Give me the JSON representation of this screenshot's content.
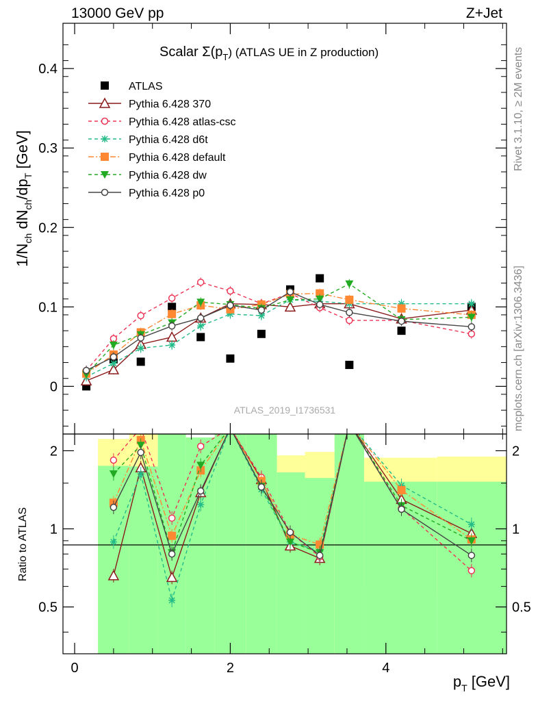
{
  "header": {
    "left": "13000 GeV pp",
    "right": "Z+Jet"
  },
  "side_labels": {
    "rivet": "Rivet 3.1.10, ≥ 2M events",
    "site": "mcplots.cern.ch [arXiv:1306.3436]"
  },
  "watermark": "ATLAS_2019_I1736531",
  "colors": {
    "data": "#000000",
    "band_inner": "#99ff99",
    "band_outer": "#ffff99"
  },
  "chart_data": [
    {
      "type": "scatter",
      "panel": "main",
      "title": "Scalar Σ(p_T) (ATLAS UE in Z production)",
      "title_main": "Scalar Σ(p",
      "title_sub": "T",
      "title_rest": ") (ATLAS UE in Z production)",
      "xlabel": "p_T [GeV]",
      "ylabel": "1/N_ch dN_ch/dp_T [GeV]",
      "xlim": [
        -0.15,
        5.55
      ],
      "ylim": [
        -0.06,
        0.457
      ],
      "y_ticks": [
        0,
        0.1,
        0.2,
        0.3,
        0.4
      ],
      "y_tick_labels": [
        "0",
        "0.1",
        "0.2",
        "0.3",
        "0.4"
      ],
      "x_ticks": [
        0,
        2,
        4
      ],
      "grid": false,
      "legend_position": "top-left",
      "x": [
        0.15,
        0.5,
        0.85,
        1.25,
        1.62,
        2.0,
        2.4,
        2.77,
        3.15,
        3.53,
        4.2,
        5.1
      ],
      "series": [
        {
          "name": "ATLAS",
          "color": "#000000",
          "marker": "square",
          "line": "none",
          "values": [
            0.0,
            0.034,
            0.031,
            0.1,
            0.062,
            0.035,
            0.066,
            0.122,
            0.136,
            0.027,
            0.07,
            0.1
          ]
        },
        {
          "name": "Pythia 6.428 370",
          "color": "#8b1a1a",
          "marker": "triangle-open",
          "line": "solid",
          "values": [
            0.007,
            0.021,
            0.053,
            0.062,
            0.086,
            0.104,
            0.103,
            0.1,
            0.104,
            0.104,
            0.085,
            0.096
          ]
        },
        {
          "name": "Pythia 6.428 atlas-csc",
          "color": "#ee3355",
          "marker": "circle-open",
          "line": "dashed",
          "values": [
            0.02,
            0.06,
            0.089,
            0.111,
            0.131,
            0.12,
            0.104,
            0.117,
            0.099,
            0.083,
            0.083,
            0.066
          ]
        },
        {
          "name": "Pythia 6.428 d6t",
          "color": "#22bb88",
          "marker": "asterisk",
          "line": "dashed",
          "values": [
            0.012,
            0.029,
            0.048,
            0.052,
            0.076,
            0.091,
            0.089,
            0.109,
            0.107,
            0.104,
            0.104,
            0.104
          ]
        },
        {
          "name": "Pythia 6.428 default",
          "color": "#ff8833",
          "marker": "square",
          "line": "dashdot",
          "values": [
            0.016,
            0.04,
            0.068,
            0.091,
            0.102,
            0.097,
            0.103,
            0.116,
            0.117,
            0.109,
            0.098,
            0.09
          ]
        },
        {
          "name": "Pythia 6.428 dw",
          "color": "#22aa22",
          "marker": "triangle-down",
          "line": "dashed",
          "values": [
            0.015,
            0.052,
            0.065,
            0.08,
            0.106,
            0.103,
            0.098,
            0.109,
            0.11,
            0.129,
            0.084,
            0.087
          ]
        },
        {
          "name": "Pythia 6.428 p0",
          "color": "#444444",
          "marker": "circle-open",
          "line": "solid",
          "values": [
            0.02,
            0.037,
            0.061,
            0.076,
            0.086,
            0.102,
            0.096,
            0.119,
            0.103,
            0.093,
            0.082,
            0.075
          ]
        }
      ]
    },
    {
      "type": "line",
      "panel": "ratio",
      "ylabel": "Ratio to ATLAS",
      "ylim": [
        0.33,
        2.32
      ],
      "y_ticks": [
        0.5,
        1,
        2
      ],
      "y_tick_labels": [
        "0.5",
        "1",
        "2"
      ],
      "x_tick_labels": [
        "0",
        "2",
        "4"
      ],
      "xlabel": "p_T [GeV]",
      "reference_line": 1,
      "band_edges": [
        0.3,
        0.7,
        1.07,
        1.43,
        1.8,
        2.2,
        2.6,
        2.96,
        3.34,
        3.72,
        4.66,
        5.55
      ],
      "band_inner": [
        [
          0.0,
          1.75
        ],
        [
          0.0,
          1.74
        ],
        [
          0.0,
          2.32
        ],
        [
          0.0,
          2.25
        ],
        [
          0.0,
          2.32
        ],
        [
          0.0,
          2.32
        ],
        [
          0.0,
          1.65
        ],
        [
          0.0,
          1.57
        ],
        [
          0.0,
          2.32
        ],
        [
          0.0,
          1.52
        ],
        [
          0.0,
          1.52
        ]
      ],
      "band_outer": [
        [
          0.0,
          2.22
        ],
        [
          0.0,
          2.32
        ],
        [
          0.66,
          1.46
        ],
        [
          0.45,
          1.86
        ],
        [
          0.0,
          2.32
        ],
        [
          0.0,
          2.32
        ],
        [
          0.67,
          1.92
        ],
        [
          0.5,
          1.98
        ],
        [
          0.0,
          2.32
        ],
        [
          0.59,
          1.88
        ],
        [
          0.56,
          1.9
        ]
      ],
      "x": [
        0.5,
        0.85,
        1.25,
        1.62,
        2.0,
        2.4,
        2.77,
        3.15,
        3.53,
        4.2,
        5.1
      ],
      "series": [
        {
          "name": "Pythia 6.428 370",
          "values": [
            0.66,
            1.72,
            0.65,
            1.38,
            2.45,
            1.55,
            0.86,
            0.77,
            2.55,
            1.3,
            0.96
          ]
        },
        {
          "name": "Pythia 6.428 atlas-csc",
          "values": [
            1.84,
            2.45,
            1.1,
            2.08,
            2.45,
            1.58,
            0.97,
            0.78,
            2.55,
            1.2,
            0.69
          ]
        },
        {
          "name": "Pythia 6.428 d6t",
          "values": [
            0.89,
            1.63,
            0.53,
            1.24,
            2.45,
            1.42,
            0.89,
            0.82,
            2.55,
            1.47,
            1.04
          ]
        },
        {
          "name": "Pythia 6.428 default",
          "values": [
            1.26,
            2.2,
            0.94,
            1.68,
            2.45,
            1.53,
            0.95,
            0.87,
            2.55,
            1.41,
            0.91
          ]
        },
        {
          "name": "Pythia 6.428 dw",
          "values": [
            1.63,
            2.1,
            0.81,
            1.76,
            2.45,
            1.46,
            0.89,
            0.81,
            2.55,
            1.23,
            0.9
          ]
        },
        {
          "name": "Pythia 6.428 p0",
          "values": [
            1.21,
            1.97,
            0.8,
            1.4,
            2.45,
            1.45,
            0.97,
            0.79,
            2.55,
            1.19,
            0.79
          ]
        }
      ]
    }
  ]
}
